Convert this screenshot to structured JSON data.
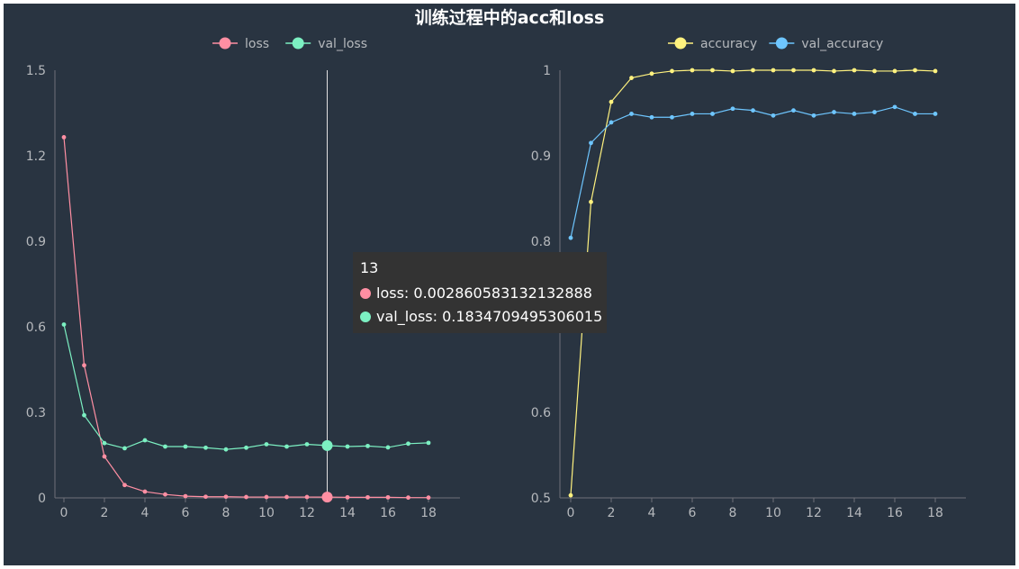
{
  "chart_data": [
    {
      "type": "line",
      "title": "训练过程中的acc和loss",
      "x": [
        0,
        1,
        2,
        3,
        4,
        5,
        6,
        7,
        8,
        9,
        10,
        11,
        12,
        13,
        14,
        15,
        16,
        17,
        18
      ],
      "x_ticks": [
        "0",
        "2",
        "4",
        "6",
        "8",
        "10",
        "12",
        "14",
        "16",
        "18"
      ],
      "y_ticks": [
        "0",
        "0.3",
        "0.6",
        "0.9",
        "1.2",
        "1.5"
      ],
      "ylim": [
        0,
        1.5
      ],
      "legend_position": "top-center",
      "grid": false,
      "series": [
        {
          "name": "loss",
          "color": "#ff8fa3",
          "values": [
            1.265,
            0.465,
            0.145,
            0.045,
            0.022,
            0.012,
            0.006,
            0.004,
            0.004,
            0.003,
            0.003,
            0.003,
            0.003,
            0.00286,
            0.002,
            0.002,
            0.002,
            0.001,
            0.001
          ]
        },
        {
          "name": "val_loss",
          "color": "#7cf0c2",
          "values": [
            0.608,
            0.29,
            0.192,
            0.174,
            0.202,
            0.18,
            0.18,
            0.176,
            0.17,
            0.176,
            0.188,
            0.18,
            0.188,
            0.1835,
            0.18,
            0.182,
            0.177,
            0.19,
            0.193
          ]
        }
      ],
      "tooltip": {
        "x_value": "13",
        "rows": [
          {
            "series": "loss",
            "color": "#ff8fa3",
            "text": "loss: 0.002860583132132888"
          },
          {
            "series": "val_loss",
            "color": "#7cf0c2",
            "text": "val_loss: 0.1834709495306015"
          }
        ]
      }
    },
    {
      "type": "line",
      "x": [
        0,
        1,
        2,
        3,
        4,
        5,
        6,
        7,
        8,
        9,
        10,
        11,
        12,
        13,
        14,
        15,
        16,
        17,
        18
      ],
      "x_ticks": [
        "0",
        "2",
        "4",
        "6",
        "8",
        "10",
        "12",
        "14",
        "16",
        "18"
      ],
      "y_ticks": [
        "0.5",
        "0.6",
        "0.7",
        "0.8",
        "0.9",
        "1"
      ],
      "ylim": [
        0.5,
        1.0
      ],
      "legend_position": "top-center",
      "grid": false,
      "series": [
        {
          "name": "accuracy",
          "color": "#fff27f",
          "values": [
            0.503,
            0.846,
            0.963,
            0.991,
            0.996,
            0.999,
            1.0,
            1.0,
            0.999,
            1.0,
            1.0,
            1.0,
            1.0,
            0.999,
            1.0,
            0.999,
            0.999,
            1.0,
            0.999
          ]
        },
        {
          "name": "val_accuracy",
          "color": "#6ec6ff",
          "values": [
            0.804,
            0.915,
            0.939,
            0.949,
            0.945,
            0.945,
            0.949,
            0.949,
            0.955,
            0.953,
            0.947,
            0.953,
            0.947,
            0.951,
            0.949,
            0.951,
            0.957,
            0.949,
            0.949
          ]
        }
      ]
    }
  ]
}
